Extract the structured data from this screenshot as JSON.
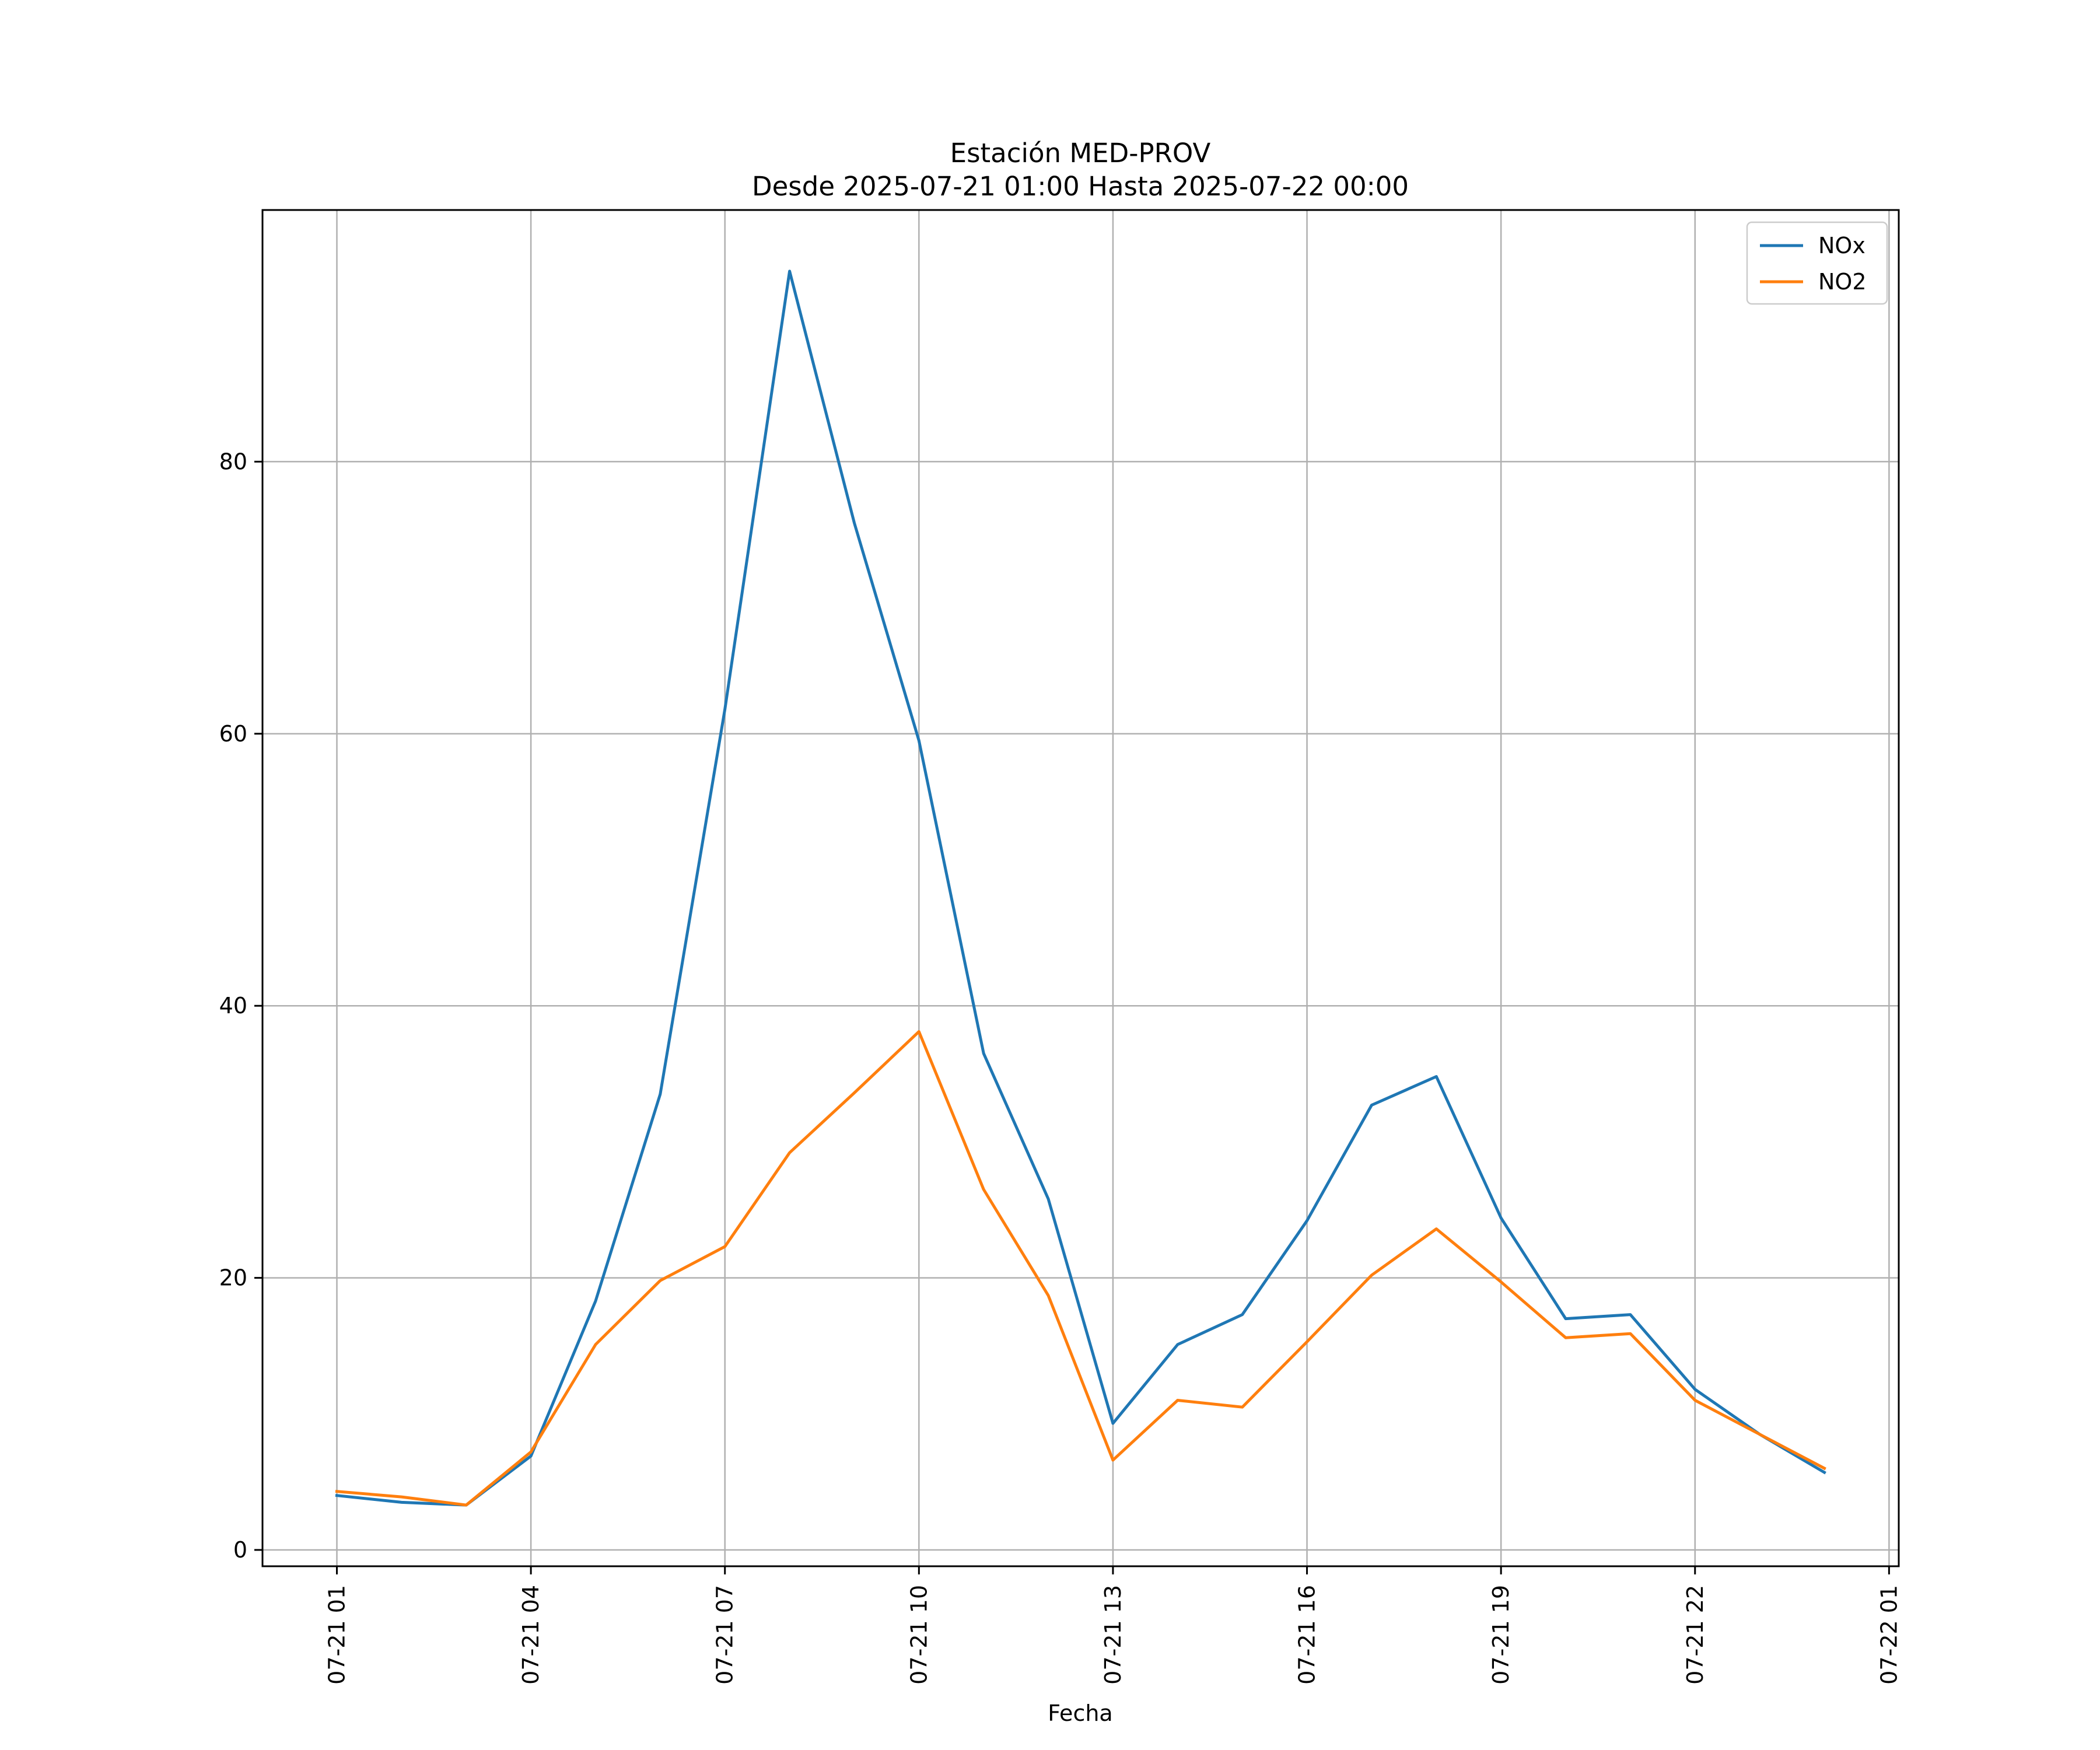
{
  "chart_data": {
    "type": "line",
    "title": "Estación MED-PROV",
    "subtitle": "Desde 2025-07-21 01:00 Hasta 2025-07-22 00:00",
    "xlabel": "Fecha",
    "ylabel": "",
    "x": [
      "2025-07-21 01:00",
      "2025-07-21 02:00",
      "2025-07-21 03:00",
      "2025-07-21 04:00",
      "2025-07-21 05:00",
      "2025-07-21 06:00",
      "2025-07-21 07:00",
      "2025-07-21 08:00",
      "2025-07-21 09:00",
      "2025-07-21 10:00",
      "2025-07-21 11:00",
      "2025-07-21 12:00",
      "2025-07-21 13:00",
      "2025-07-21 14:00",
      "2025-07-21 15:00",
      "2025-07-21 16:00",
      "2025-07-21 17:00",
      "2025-07-21 18:00",
      "2025-07-21 19:00",
      "2025-07-21 20:00",
      "2025-07-21 21:00",
      "2025-07-21 22:00",
      "2025-07-21 23:00",
      "2025-07-22 00:00"
    ],
    "series": [
      {
        "name": "NOx",
        "color": "#1f77b4",
        "values": [
          4.0,
          3.5,
          3.3,
          6.9,
          18.3,
          33.5,
          61.8,
          94.0,
          75.5,
          59.5,
          36.5,
          25.8,
          9.3,
          15.1,
          17.3,
          24.2,
          32.7,
          34.8,
          24.4,
          17.0,
          17.3,
          11.8,
          8.5,
          5.7
        ]
      },
      {
        "name": "NO2",
        "color": "#ff7f0e",
        "values": [
          4.3,
          3.9,
          3.3,
          7.2,
          15.1,
          19.8,
          22.3,
          29.2,
          33.6,
          38.1,
          26.5,
          18.7,
          6.6,
          11.0,
          10.5,
          15.3,
          20.2,
          23.6,
          19.7,
          15.6,
          15.9,
          11.0,
          8.5,
          6.0
        ]
      }
    ],
    "x_ticks": [
      "2025-07-21 01:00",
      "2025-07-21 04:00",
      "2025-07-21 07:00",
      "2025-07-21 10:00",
      "2025-07-21 13:00",
      "2025-07-21 16:00",
      "2025-07-21 19:00",
      "2025-07-21 22:00",
      "2025-07-22 01:00"
    ],
    "x_tick_labels": [
      "07-21 01",
      "07-21 04",
      "07-21 07",
      "07-21 10",
      "07-21 13",
      "07-21 16",
      "07-21 19",
      "07-21 22",
      "07-22 01"
    ],
    "xlim": [
      "2025-07-20 23:51:00",
      "2025-07-22 01:09:00"
    ],
    "y_ticks": [
      0,
      20,
      40,
      60,
      80
    ],
    "ylim": [
      -1.2,
      98.5
    ],
    "grid": true,
    "legend_position": "top-right"
  }
}
